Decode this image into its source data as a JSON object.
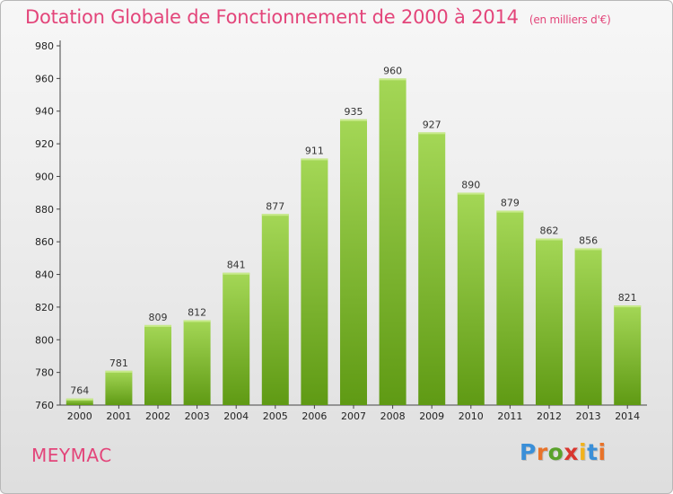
{
  "header": {
    "title": "Dotation Globale de Fonctionnement de 2000 à 2014",
    "unit": "(en milliers d'€)"
  },
  "footer": {
    "commune": "MEYMAC",
    "logo_letters": [
      "P",
      "r",
      "o",
      "x",
      "i",
      "t",
      "i"
    ],
    "logo_colors": [
      "#3a8fd8",
      "#e8732a",
      "#5aa22b",
      "#d9362f",
      "#f2b21b",
      "#3a8fd8",
      "#e8732a"
    ]
  },
  "colors": {
    "bar_top": "#a4d756",
    "bar_bottom": "#5f9a14",
    "title": "#e3457a"
  },
  "chart_data": {
    "type": "bar",
    "title": "Dotation Globale de Fonctionnement de 2000 à 2014",
    "subtitle": "(en milliers d'€)",
    "categories": [
      "2000",
      "2001",
      "2002",
      "2003",
      "2004",
      "2005",
      "2006",
      "2007",
      "2008",
      "2009",
      "2010",
      "2011",
      "2012",
      "2013",
      "2014"
    ],
    "values": [
      764,
      781,
      809,
      812,
      841,
      877,
      911,
      935,
      960,
      927,
      890,
      879,
      862,
      856,
      821
    ],
    "ylim": [
      760,
      980
    ],
    "yticks": [
      760,
      780,
      800,
      820,
      840,
      860,
      880,
      900,
      920,
      940,
      960,
      980
    ],
    "grid": false
  }
}
